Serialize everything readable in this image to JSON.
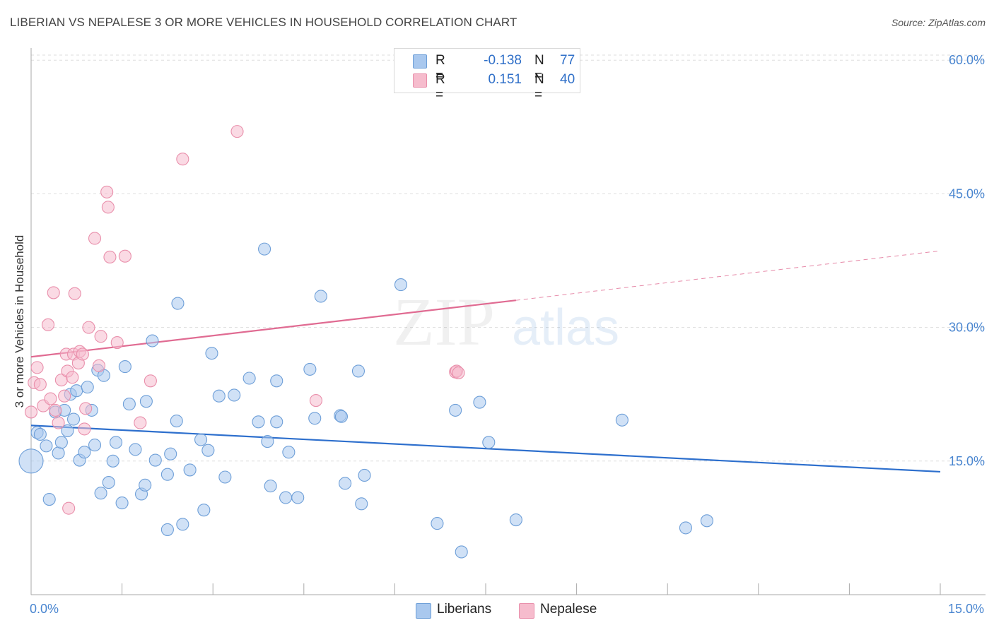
{
  "title": "LIBERIAN VS NEPALESE 3 OR MORE VEHICLES IN HOUSEHOLD CORRELATION CHART",
  "source": "Source: ZipAtlas.com",
  "watermark": {
    "zip": "ZIP",
    "atlas": "atlas"
  },
  "colors": {
    "blue_fill": "#a9c8ee",
    "blue_stroke": "#6e9fd8",
    "blue_line": "#2d6fcd",
    "pink_fill": "#f6bccd",
    "pink_stroke": "#e98fab",
    "pink_line": "#e06b92",
    "tick_text": "#4a86d0",
    "grid": "#dddddd"
  },
  "legend": {
    "rows": [
      {
        "r_label": "R =",
        "r_value": "-0.138",
        "n_label": "N =",
        "n_value": "77",
        "color": "#a9c8ee",
        "border": "#6e9fd8"
      },
      {
        "r_label": "R =",
        "r_value": "0.151",
        "n_label": "N =",
        "n_value": "40",
        "color": "#f6bccd",
        "border": "#e98fab"
      }
    ]
  },
  "bottom_legend": [
    {
      "label": "Liberians",
      "color": "#a9c8ee",
      "border": "#6e9fd8"
    },
    {
      "label": "Nepalese",
      "color": "#f6bccd",
      "border": "#e98fab"
    }
  ],
  "chart_data": {
    "type": "scatter",
    "title": "LIBERIAN VS NEPALESE 3 OR MORE VEHICLES IN HOUSEHOLD CORRELATION CHART",
    "xlabel": "",
    "ylabel": "3 or more Vehicles in Household",
    "xlim": [
      0,
      15
    ],
    "ylim": [
      0,
      62
    ],
    "x_tick_labels": [
      "0.0%",
      "15.0%"
    ],
    "y_ticks": [
      15,
      30,
      45,
      60
    ],
    "y_tick_labels": [
      "15.0%",
      "30.0%",
      "45.0%",
      "60.0%"
    ],
    "grid": true,
    "legend_position": "top-center",
    "series": [
      {
        "name": "Liberians",
        "r": -0.138,
        "n": 77,
        "trend": {
          "x0": 0,
          "y0": 19.0,
          "x1": 15,
          "y1": 13.8,
          "solid_to": 15
        },
        "points": [
          [
            0.0,
            15.0,
            3
          ],
          [
            0.1,
            18.2,
            1
          ],
          [
            0.15,
            18.0,
            1
          ],
          [
            0.25,
            16.7,
            1
          ],
          [
            0.3,
            10.7,
            1
          ],
          [
            0.4,
            20.5,
            1
          ],
          [
            0.45,
            15.9,
            1
          ],
          [
            0.5,
            17.1,
            1
          ],
          [
            0.55,
            20.7,
            1
          ],
          [
            0.6,
            18.4,
            1
          ],
          [
            0.65,
            22.5,
            1
          ],
          [
            0.7,
            19.7,
            1
          ],
          [
            0.75,
            22.9,
            1
          ],
          [
            0.8,
            15.1,
            1
          ],
          [
            0.88,
            16.0,
            1
          ],
          [
            0.93,
            23.3,
            1
          ],
          [
            1.0,
            20.7,
            1
          ],
          [
            1.05,
            16.8,
            1
          ],
          [
            1.1,
            25.2,
            1
          ],
          [
            1.15,
            11.4,
            1
          ],
          [
            1.2,
            24.6,
            1
          ],
          [
            1.28,
            12.6,
            1
          ],
          [
            1.35,
            15.0,
            1
          ],
          [
            1.4,
            17.1,
            1
          ],
          [
            1.5,
            10.3,
            1
          ],
          [
            1.55,
            25.6,
            1
          ],
          [
            1.62,
            21.4,
            1
          ],
          [
            1.72,
            16.3,
            1
          ],
          [
            1.82,
            11.3,
            1
          ],
          [
            1.88,
            12.3,
            1
          ],
          [
            1.9,
            21.7,
            1
          ],
          [
            2.0,
            28.5,
            1
          ],
          [
            2.05,
            15.1,
            1
          ],
          [
            2.25,
            7.3,
            1
          ],
          [
            2.25,
            13.5,
            1
          ],
          [
            2.3,
            15.8,
            1
          ],
          [
            2.4,
            19.5,
            1
          ],
          [
            2.42,
            32.7,
            1
          ],
          [
            2.5,
            7.9,
            1
          ],
          [
            2.62,
            14.0,
            1
          ],
          [
            2.8,
            17.4,
            1
          ],
          [
            2.85,
            9.5,
            1
          ],
          [
            2.92,
            16.2,
            1
          ],
          [
            2.98,
            27.1,
            1
          ],
          [
            3.1,
            22.3,
            1
          ],
          [
            3.2,
            13.2,
            1
          ],
          [
            3.35,
            22.4,
            1
          ],
          [
            3.6,
            24.3,
            1
          ],
          [
            3.75,
            19.4,
            1
          ],
          [
            3.85,
            38.8,
            1
          ],
          [
            3.9,
            17.2,
            1
          ],
          [
            3.95,
            12.2,
            1
          ],
          [
            4.05,
            19.4,
            1
          ],
          [
            4.05,
            24.0,
            1
          ],
          [
            4.2,
            10.9,
            1
          ],
          [
            4.25,
            16.0,
            1
          ],
          [
            4.4,
            10.9,
            1
          ],
          [
            4.6,
            25.3,
            1
          ],
          [
            4.68,
            19.8,
            1
          ],
          [
            4.78,
            33.5,
            1
          ],
          [
            5.1,
            20.1,
            1
          ],
          [
            5.12,
            20.0,
            1
          ],
          [
            5.18,
            12.5,
            1
          ],
          [
            5.4,
            25.1,
            1
          ],
          [
            5.45,
            10.2,
            1
          ],
          [
            5.5,
            13.4,
            1
          ],
          [
            6.1,
            34.8,
            1
          ],
          [
            6.7,
            8.0,
            1
          ],
          [
            7.0,
            20.7,
            1
          ],
          [
            7.1,
            4.8,
            1
          ],
          [
            7.4,
            21.6,
            1
          ],
          [
            7.55,
            17.1,
            1
          ],
          [
            8.0,
            8.4,
            1
          ],
          [
            9.75,
            19.6,
            1
          ],
          [
            10.8,
            7.5,
            1
          ],
          [
            11.15,
            8.3,
            1
          ]
        ]
      },
      {
        "name": "Nepalese",
        "r": 0.151,
        "n": 40,
        "trend": {
          "x0": 0,
          "y0": 26.7,
          "x1": 15,
          "y1": 38.6,
          "solid_to": 8.0
        },
        "points": [
          [
            0.0,
            20.5,
            1
          ],
          [
            0.05,
            23.8,
            1
          ],
          [
            0.1,
            25.5,
            1
          ],
          [
            0.15,
            23.6,
            1
          ],
          [
            0.2,
            21.2,
            1
          ],
          [
            0.28,
            30.3,
            1
          ],
          [
            0.32,
            22.0,
            1
          ],
          [
            0.37,
            33.9,
            1
          ],
          [
            0.4,
            20.7,
            1
          ],
          [
            0.45,
            19.3,
            1
          ],
          [
            0.5,
            24.1,
            1
          ],
          [
            0.55,
            22.3,
            1
          ],
          [
            0.58,
            27.0,
            1
          ],
          [
            0.6,
            25.1,
            1
          ],
          [
            0.62,
            9.7,
            1
          ],
          [
            0.68,
            24.4,
            1
          ],
          [
            0.7,
            27.0,
            1
          ],
          [
            0.72,
            33.8,
            1
          ],
          [
            0.78,
            26.0,
            1
          ],
          [
            0.8,
            27.3,
            1
          ],
          [
            0.85,
            27.0,
            1
          ],
          [
            0.88,
            18.6,
            1
          ],
          [
            0.9,
            20.9,
            1
          ],
          [
            0.95,
            30.0,
            1
          ],
          [
            1.05,
            40.0,
            1
          ],
          [
            1.12,
            25.7,
            1
          ],
          [
            1.15,
            29.0,
            1
          ],
          [
            1.25,
            45.2,
            1
          ],
          [
            1.27,
            43.5,
            1
          ],
          [
            1.3,
            37.9,
            1
          ],
          [
            1.42,
            28.3,
            1
          ],
          [
            1.55,
            38.0,
            1
          ],
          [
            1.8,
            19.3,
            1
          ],
          [
            1.97,
            24.0,
            1
          ],
          [
            2.5,
            48.9,
            1
          ],
          [
            3.4,
            52.0,
            1
          ],
          [
            4.7,
            21.8,
            1
          ],
          [
            7.0,
            25.0,
            1
          ],
          [
            7.02,
            25.1,
            1
          ],
          [
            7.05,
            24.9,
            1
          ]
        ]
      }
    ]
  }
}
